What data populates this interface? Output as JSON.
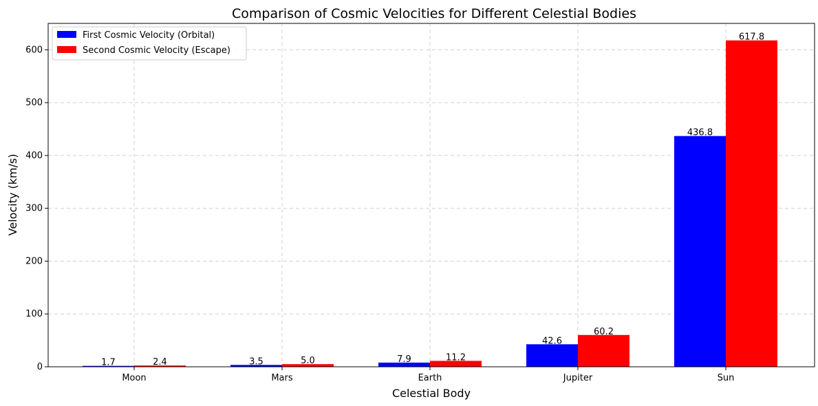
{
  "chart_data": {
    "type": "bar",
    "title": "Comparison of Cosmic Velocities for Different Celestial Bodies",
    "xlabel": "Celestial Body",
    "ylabel": "Velocity (km/s)",
    "categories": [
      "Moon",
      "Mars",
      "Earth",
      "Jupiter",
      "Sun"
    ],
    "series": [
      {
        "name": "First Cosmic Velocity (Orbital)",
        "color": "#0000ff",
        "values": [
          1.7,
          3.5,
          7.9,
          42.6,
          436.8
        ],
        "labels": [
          "1.7",
          "3.5",
          "7.9",
          "42.6",
          "436.8"
        ]
      },
      {
        "name": "Second Cosmic Velocity (Escape)",
        "color": "#ff0000",
        "values": [
          2.4,
          5.0,
          11.2,
          60.2,
          617.8
        ],
        "labels": [
          "2.4",
          "5.0",
          "11.2",
          "60.2",
          "617.8"
        ]
      }
    ],
    "ylim": [
      0,
      650
    ],
    "yticks": [
      0,
      100,
      200,
      300,
      400,
      500,
      600
    ],
    "ytick_labels": [
      "0",
      "100",
      "200",
      "300",
      "400",
      "500",
      "600"
    ],
    "grid": true,
    "legend": "top-left"
  }
}
